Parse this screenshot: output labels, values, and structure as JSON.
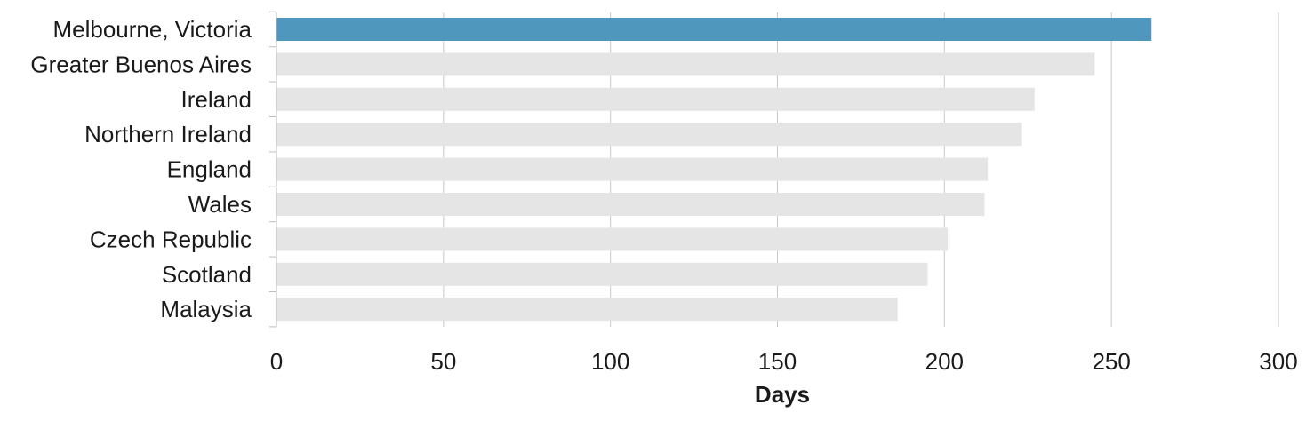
{
  "chart_data": {
    "type": "bar",
    "orientation": "horizontal",
    "categories": [
      "Melbourne, Victoria",
      "Greater Buenos Aires",
      "Ireland",
      "Northern Ireland",
      "England",
      "Wales",
      "Czech Republic",
      "Scotland",
      "Malaysia"
    ],
    "values": [
      262,
      245,
      227,
      223,
      213,
      212,
      201,
      195,
      186
    ],
    "xlabel": "Days",
    "xlim": [
      0,
      300
    ],
    "xticks": [
      0,
      50,
      100,
      150,
      200,
      250,
      300
    ],
    "grid": "vertical",
    "colors": {
      "highlight": "#4f97bd",
      "default": "#e6e5e5"
    },
    "highlight_index": 0
  }
}
